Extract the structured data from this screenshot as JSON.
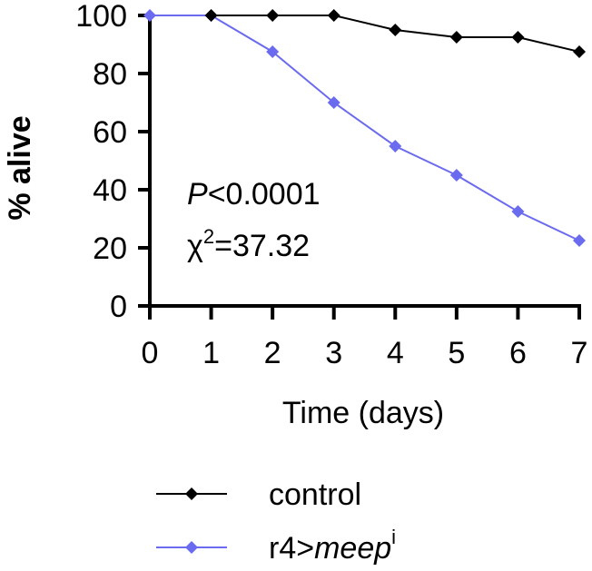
{
  "chart_data": {
    "type": "line",
    "title": "",
    "xlabel": "Time (days)",
    "ylabel": "% alive",
    "x": [
      0,
      1,
      2,
      3,
      4,
      5,
      6,
      7
    ],
    "xlim": [
      0,
      7
    ],
    "ylim": [
      0,
      100
    ],
    "xticks": [
      "0",
      "1",
      "2",
      "3",
      "4",
      "5",
      "6",
      "7"
    ],
    "yticks": [
      "0",
      "20",
      "40",
      "60",
      "80",
      "100"
    ],
    "grid": false,
    "legend_position": "bottom",
    "series": [
      {
        "name": "control",
        "color": "#000000",
        "marker": "diamond",
        "points": [
          [
            1,
            100
          ],
          [
            2,
            100
          ],
          [
            3,
            100
          ],
          [
            4,
            95
          ],
          [
            5,
            92.5
          ],
          [
            6,
            92.5
          ],
          [
            7,
            87.5
          ]
        ]
      },
      {
        "name_prefix": "r4>",
        "name_italic": "meep",
        "name_sup": "i",
        "color": "#6b6bf0",
        "marker": "diamond",
        "points": [
          [
            0,
            100
          ],
          [
            1,
            100
          ],
          [
            2,
            87.5
          ],
          [
            3,
            70
          ],
          [
            4,
            55
          ],
          [
            5,
            45
          ],
          [
            6,
            32.5
          ],
          [
            7,
            22.5
          ]
        ]
      }
    ],
    "annotations": {
      "p_label": "P",
      "p_value": "<0.0001",
      "chi_label": "χ",
      "chi_sup": "2",
      "chi_value": "=37.32"
    }
  }
}
